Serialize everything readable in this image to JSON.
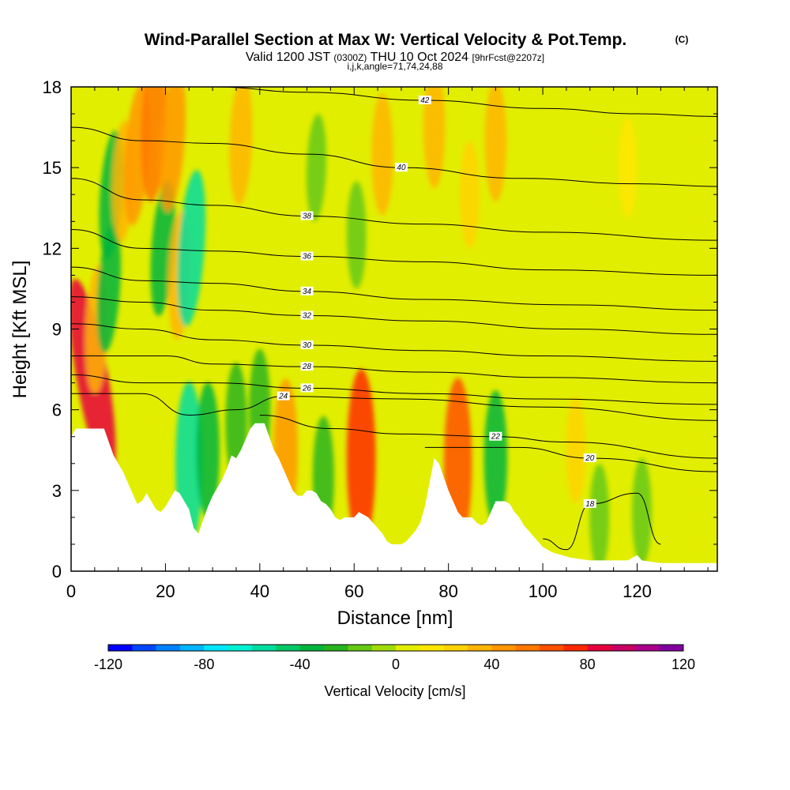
{
  "title": "Wind-Parallel Section at Max W: Vertical Velocity & Pot.Temp.",
  "title_mark": "(C)",
  "subtitle_main": "Valid 1200 JST",
  "subtitle_z": "(0300Z)",
  "subtitle_date": "THU 10 Oct 2024",
  "subtitle_fcst": "[9hrFcst@2207z]",
  "subtitle_ij": "i,j,k,angle=71,74,24,88",
  "colors": {
    "background": "#ffffff",
    "terrain": "#ffffff",
    "contour": "#000000",
    "base_fill": "#e2ee00"
  },
  "chart_data": {
    "type": "heatmap",
    "xlabel": "Distance [nm]",
    "ylabel": "Height [Kft MSL]",
    "xlim": [
      0,
      137
    ],
    "ylim": [
      0,
      18
    ],
    "x_ticks": [
      "0",
      "20",
      "40",
      "60",
      "80",
      "100",
      "120"
    ],
    "y_ticks": [
      "0",
      "3",
      "6",
      "9",
      "12",
      "15",
      "18"
    ],
    "grid": false,
    "colorbar": {
      "title": "Vertical Velocity [cm/s]",
      "min": -120,
      "max": 120,
      "step": 10,
      "labels": [
        "-120",
        "-80",
        "-40",
        "0",
        "40",
        "80",
        "120"
      ],
      "colors": [
        "#0000ff",
        "#0046ff",
        "#0082ff",
        "#00b4ff",
        "#00e6ff",
        "#00f0d2",
        "#00dca0",
        "#00c864",
        "#00b43c",
        "#28b41e",
        "#64c814",
        "#a0dc0a",
        "#e2ee00",
        "#ffe600",
        "#ffd200",
        "#ffb400",
        "#ff9600",
        "#ff7800",
        "#ff5000",
        "#ff2800",
        "#e6003c",
        "#c80064",
        "#aa008c",
        "#8200a0"
      ]
    },
    "terrain_profile": [
      [
        0,
        5.0
      ],
      [
        1,
        5.3
      ],
      [
        6,
        5.3
      ],
      [
        7,
        5.3
      ],
      [
        8,
        4.8
      ],
      [
        9,
        4.3
      ],
      [
        10,
        4.0
      ],
      [
        11,
        3.7
      ],
      [
        12,
        3.3
      ],
      [
        13,
        2.9
      ],
      [
        14,
        2.5
      ],
      [
        15,
        2.6
      ],
      [
        16,
        2.9
      ],
      [
        17,
        2.6
      ],
      [
        18,
        2.3
      ],
      [
        19,
        2.2
      ],
      [
        20,
        2.4
      ],
      [
        21,
        2.7
      ],
      [
        22,
        3.0
      ],
      [
        23,
        2.9
      ],
      [
        24,
        2.6
      ],
      [
        25,
        2.3
      ],
      [
        26,
        1.6
      ],
      [
        27,
        1.4
      ],
      [
        28,
        1.9
      ],
      [
        29,
        2.4
      ],
      [
        30,
        2.8
      ],
      [
        31,
        3.1
      ],
      [
        32,
        3.4
      ],
      [
        33,
        3.8
      ],
      [
        34,
        4.3
      ],
      [
        35,
        4.2
      ],
      [
        36,
        4.5
      ],
      [
        37,
        4.9
      ],
      [
        38,
        5.3
      ],
      [
        39,
        5.5
      ],
      [
        41,
        5.5
      ],
      [
        42,
        5.0
      ],
      [
        43,
        4.5
      ],
      [
        44,
        4.2
      ],
      [
        45,
        3.8
      ],
      [
        46,
        3.4
      ],
      [
        47,
        3.0
      ],
      [
        48,
        2.8
      ],
      [
        49,
        2.8
      ],
      [
        50,
        3.0
      ],
      [
        51,
        3.0
      ],
      [
        52,
        2.9
      ],
      [
        53,
        2.6
      ],
      [
        54,
        2.5
      ],
      [
        55,
        2.3
      ],
      [
        56,
        2.0
      ],
      [
        57,
        1.9
      ],
      [
        58,
        2.0
      ],
      [
        59,
        2.0
      ],
      [
        60,
        2.0
      ],
      [
        61,
        2.2
      ],
      [
        62,
        2.1
      ],
      [
        63,
        2.0
      ],
      [
        64,
        1.8
      ],
      [
        65,
        1.6
      ],
      [
        66,
        1.4
      ],
      [
        67,
        1.1
      ],
      [
        68,
        1.0
      ],
      [
        69,
        1.0
      ],
      [
        70,
        1.0
      ],
      [
        71,
        1.1
      ],
      [
        72,
        1.3
      ],
      [
        73,
        1.5
      ],
      [
        74,
        1.8
      ],
      [
        75,
        2.4
      ],
      [
        76,
        3.3
      ],
      [
        77,
        4.2
      ],
      [
        78,
        4.0
      ],
      [
        79,
        3.5
      ],
      [
        80,
        3.0
      ],
      [
        81,
        2.6
      ],
      [
        82,
        2.2
      ],
      [
        83,
        2.0
      ],
      [
        84,
        2.0
      ],
      [
        85,
        2.0
      ],
      [
        86,
        1.8
      ],
      [
        87,
        1.7
      ],
      [
        88,
        1.8
      ],
      [
        89,
        2.2
      ],
      [
        90,
        2.6
      ],
      [
        91,
        2.6
      ],
      [
        92,
        2.6
      ],
      [
        93,
        2.5
      ],
      [
        94,
        2.2
      ],
      [
        95,
        2.0
      ],
      [
        96,
        1.7
      ],
      [
        97,
        1.5
      ],
      [
        98,
        1.3
      ],
      [
        99,
        1.1
      ],
      [
        100,
        0.9
      ],
      [
        102,
        0.7
      ],
      [
        104,
        0.6
      ],
      [
        106,
        0.5
      ],
      [
        110,
        0.4
      ],
      [
        115,
        0.4
      ],
      [
        118,
        0.4
      ],
      [
        120,
        0.6
      ],
      [
        121,
        0.4
      ],
      [
        125,
        0.3
      ],
      [
        137,
        0.3
      ]
    ],
    "velocity_cells": [
      {
        "x": 4.5,
        "y": 7.2,
        "w": -0.5,
        "v": 85
      },
      {
        "x": 5.5,
        "y": 9.0,
        "w": 0.1,
        "v": 35
      },
      {
        "x": 8.0,
        "y": 10.5,
        "w": 0.2,
        "v": -35
      },
      {
        "x": 8.5,
        "y": 14.0,
        "w": 0.2,
        "v": -35
      },
      {
        "x": 11.0,
        "y": 14.5,
        "w": 0.1,
        "v": 30
      },
      {
        "x": 14.0,
        "y": 15.5,
        "w": 0.2,
        "v": 45
      },
      {
        "x": 17.5,
        "y": 16.5,
        "w": 0.1,
        "v": 50
      },
      {
        "x": 19.5,
        "y": 12.0,
        "w": 0.2,
        "v": -40
      },
      {
        "x": 21.5,
        "y": 16.0,
        "w": 0.2,
        "v": 45
      },
      {
        "x": 23.0,
        "y": 11.0,
        "w": 0.1,
        "v": 35
      },
      {
        "x": 25.5,
        "y": 12.0,
        "w": 0.2,
        "v": -55
      },
      {
        "x": 25.0,
        "y": 4.0,
        "w": 0.0,
        "v": -60
      },
      {
        "x": 29.0,
        "y": 4.5,
        "w": 0.0,
        "v": -40
      },
      {
        "x": 35.0,
        "y": 5.5,
        "w": 0.0,
        "v": -30
      },
      {
        "x": 40.0,
        "y": 6.0,
        "w": 0.0,
        "v": -30
      },
      {
        "x": 36.0,
        "y": 16.0,
        "w": 0.1,
        "v": 35
      },
      {
        "x": 45.5,
        "y": 4.5,
        "w": 0.0,
        "v": 45
      },
      {
        "x": 52.0,
        "y": 15.0,
        "w": 0.1,
        "v": -20
      },
      {
        "x": 53.5,
        "y": 3.5,
        "w": 0.0,
        "v": -30
      },
      {
        "x": 61.5,
        "y": 4.2,
        "w": 0.0,
        "v": 70
      },
      {
        "x": 60.5,
        "y": 12.5,
        "w": 0.0,
        "v": -20
      },
      {
        "x": 66.0,
        "y": 15.5,
        "w": 0.0,
        "v": 30
      },
      {
        "x": 82.0,
        "y": 4.0,
        "w": 0.0,
        "v": 65
      },
      {
        "x": 90.0,
        "y": 4.2,
        "w": 0.0,
        "v": -40
      },
      {
        "x": 77.0,
        "y": 16.5,
        "w": 0.0,
        "v": 30
      },
      {
        "x": 84.5,
        "y": 14.0,
        "w": 0.0,
        "v": 20
      },
      {
        "x": 90.0,
        "y": 16.0,
        "w": 0.0,
        "v": 30
      },
      {
        "x": 107.0,
        "y": 4.5,
        "w": 0.0,
        "v": 20
      },
      {
        "x": 112.0,
        "y": 2.0,
        "w": 0.0,
        "v": -20
      },
      {
        "x": 121.0,
        "y": 2.2,
        "w": 0.0,
        "v": -20
      },
      {
        "x": 118.0,
        "y": 15.0,
        "w": 0.0,
        "v": 15
      }
    ],
    "theta_contours": [
      {
        "level": 42,
        "points": [
          [
            0,
            18.0
          ],
          [
            30,
            18.0
          ],
          [
            50,
            17.8
          ],
          [
            75,
            17.5
          ],
          [
            100,
            17.2
          ],
          [
            120,
            17.0
          ],
          [
            137,
            16.9
          ]
        ]
      },
      {
        "level": 40,
        "points": [
          [
            0,
            16.5
          ],
          [
            15,
            16.0
          ],
          [
            30,
            15.9
          ],
          [
            50,
            15.5
          ],
          [
            70,
            15.0
          ],
          [
            95,
            14.6
          ],
          [
            120,
            14.4
          ],
          [
            137,
            14.3
          ]
        ]
      },
      {
        "level": 38,
        "points": [
          [
            0,
            14.6
          ],
          [
            15,
            13.8
          ],
          [
            30,
            13.6
          ],
          [
            50,
            13.2
          ],
          [
            75,
            12.9
          ],
          [
            100,
            12.6
          ],
          [
            137,
            12.3
          ]
        ]
      },
      {
        "level": 36,
        "points": [
          [
            0,
            12.7
          ],
          [
            15,
            12.0
          ],
          [
            30,
            11.9
          ],
          [
            50,
            11.7
          ],
          [
            75,
            11.5
          ],
          [
            100,
            11.2
          ],
          [
            137,
            11.0
          ]
        ]
      },
      {
        "level": 34,
        "points": [
          [
            0,
            11.3
          ],
          [
            15,
            10.8
          ],
          [
            30,
            10.7
          ],
          [
            50,
            10.4
          ],
          [
            75,
            10.1
          ],
          [
            105,
            9.9
          ],
          [
            137,
            9.7
          ]
        ]
      },
      {
        "level": 32,
        "points": [
          [
            0,
            10.2
          ],
          [
            15,
            10.0
          ],
          [
            30,
            9.7
          ],
          [
            50,
            9.5
          ],
          [
            75,
            9.3
          ],
          [
            105,
            9.0
          ],
          [
            137,
            8.8
          ]
        ]
      },
      {
        "level": 30,
        "points": [
          [
            0,
            9.2
          ],
          [
            15,
            9.0
          ],
          [
            30,
            8.6
          ],
          [
            50,
            8.4
          ],
          [
            75,
            8.2
          ],
          [
            100,
            8.0
          ],
          [
            137,
            7.8
          ]
        ]
      },
      {
        "level": 28,
        "points": [
          [
            0,
            8.0
          ],
          [
            20,
            8.0
          ],
          [
            30,
            7.7
          ],
          [
            50,
            7.6
          ],
          [
            75,
            7.4
          ],
          [
            100,
            7.2
          ],
          [
            137,
            7.0
          ]
        ]
      },
      {
        "level": 26,
        "points": [
          [
            0,
            7.3
          ],
          [
            15,
            7.0
          ],
          [
            30,
            7.0
          ],
          [
            50,
            6.8
          ],
          [
            75,
            6.6
          ],
          [
            100,
            6.4
          ],
          [
            137,
            6.2
          ]
        ]
      },
      {
        "level": 24,
        "points": [
          [
            0,
            6.6
          ],
          [
            15,
            6.6
          ],
          [
            25,
            5.8
          ],
          [
            35,
            6.0
          ],
          [
            45,
            6.5
          ],
          [
            70,
            6.4
          ],
          [
            100,
            6.1
          ],
          [
            137,
            5.6
          ]
        ]
      },
      {
        "level": 22,
        "points": [
          [
            40,
            5.8
          ],
          [
            55,
            5.3
          ],
          [
            70,
            5.1
          ],
          [
            90,
            5.0
          ],
          [
            105,
            4.8
          ],
          [
            137,
            4.2
          ]
        ]
      },
      {
        "level": 20,
        "points": [
          [
            75,
            4.6
          ],
          [
            95,
            4.6
          ],
          [
            110,
            4.2
          ],
          [
            137,
            3.7
          ]
        ]
      },
      {
        "level": 18,
        "points": [
          [
            100,
            1.2
          ],
          [
            105,
            0.8
          ],
          [
            110,
            2.5
          ],
          [
            120,
            2.9
          ],
          [
            125,
            1.0
          ]
        ]
      }
    ]
  }
}
